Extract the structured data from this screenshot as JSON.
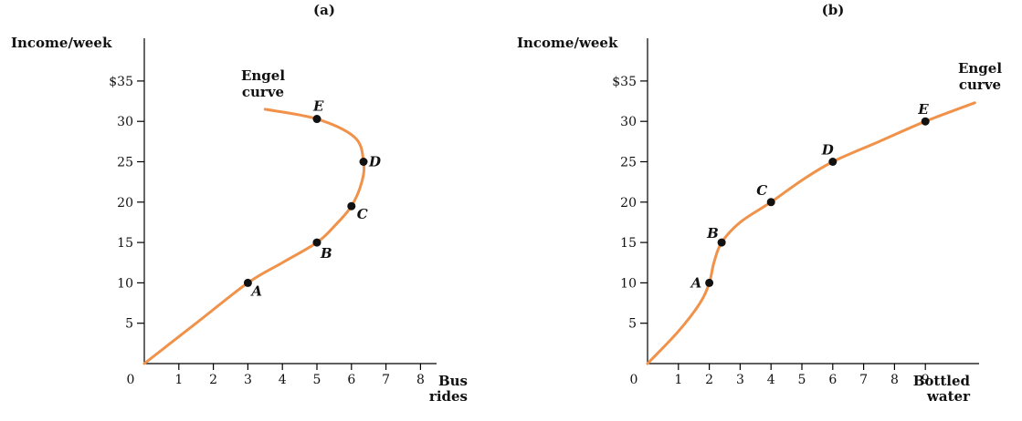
{
  "chart_data": [
    {
      "type": "line",
      "panel_label": "(a)",
      "ylabel": "Income/week",
      "xlabel_lines": [
        "Bus",
        "rides"
      ],
      "curve_label_lines": [
        "Engel",
        "curve"
      ],
      "xlim": [
        0,
        9
      ],
      "ylim": [
        0,
        35
      ],
      "xticks": [
        0,
        1,
        2,
        3,
        4,
        5,
        6,
        7,
        8
      ],
      "yticks": [
        5,
        10,
        15,
        20,
        25,
        30,
        35
      ],
      "ytick_labels": [
        "5",
        "10",
        "15",
        "20",
        "25",
        "30",
        "$35"
      ],
      "curve": [
        [
          0,
          0
        ],
        [
          1.5,
          5
        ],
        [
          3,
          10
        ],
        [
          4,
          12.5
        ],
        [
          5,
          15
        ],
        [
          5.5,
          17
        ],
        [
          6,
          19.5
        ],
        [
          6.3,
          22.5
        ],
        [
          6.35,
          25
        ],
        [
          6.1,
          28
        ],
        [
          5,
          30.3
        ],
        [
          3.5,
          31.5
        ]
      ],
      "points": [
        {
          "label": "A",
          "x": 3,
          "y": 10
        },
        {
          "label": "B",
          "x": 5,
          "y": 15
        },
        {
          "label": "C",
          "x": 6,
          "y": 19.5
        },
        {
          "label": "D",
          "x": 6.35,
          "y": 25
        },
        {
          "label": "E",
          "x": 5,
          "y": 30.3
        }
      ]
    },
    {
      "type": "line",
      "panel_label": "(b)",
      "ylabel": "Income/week",
      "xlabel_lines": [
        "Bottled",
        "water"
      ],
      "curve_label_lines": [
        "Engel",
        "curve"
      ],
      "xlim": [
        0,
        11
      ],
      "ylim": [
        0,
        35
      ],
      "xticks": [
        0,
        1,
        2,
        3,
        4,
        5,
        6,
        7,
        8,
        9
      ],
      "yticks": [
        5,
        10,
        15,
        20,
        25,
        30,
        35
      ],
      "ytick_labels": [
        "5",
        "10",
        "15",
        "20",
        "25",
        "30",
        "$35"
      ],
      "curve": [
        [
          0,
          0
        ],
        [
          1,
          4
        ],
        [
          1.7,
          7.5
        ],
        [
          2,
          10
        ],
        [
          2.15,
          12.5
        ],
        [
          2.4,
          15
        ],
        [
          3,
          17.5
        ],
        [
          4,
          20
        ],
        [
          5,
          22.7
        ],
        [
          6,
          25
        ],
        [
          7.5,
          27.5
        ],
        [
          9,
          30
        ],
        [
          10.6,
          32.3
        ]
      ],
      "points": [
        {
          "label": "A",
          "x": 2,
          "y": 10
        },
        {
          "label": "B",
          "x": 2.4,
          "y": 15
        },
        {
          "label": "C",
          "x": 4,
          "y": 20
        },
        {
          "label": "D",
          "x": 6,
          "y": 25
        },
        {
          "label": "E",
          "x": 9,
          "y": 30
        }
      ]
    }
  ]
}
